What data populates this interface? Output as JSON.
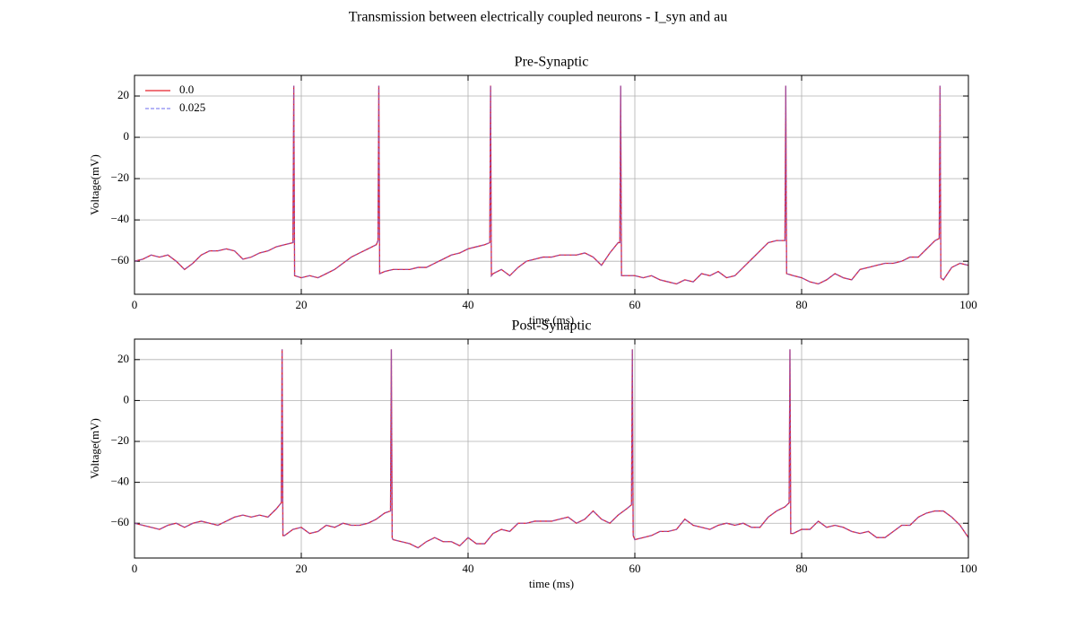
{
  "title": "Transmission between electrically coupled neurons - I_syn and au",
  "chart_data": [
    {
      "type": "line",
      "title": "Pre-Synaptic",
      "xlabel": "time (ms)",
      "ylabel": "Voltage(mV)",
      "xlim": [
        0,
        100
      ],
      "ylim": [
        -76,
        30
      ],
      "xticks": [
        0,
        20,
        40,
        60,
        80,
        100
      ],
      "yticks": [
        {
          "value": -60,
          "label": "−60"
        },
        {
          "value": -40,
          "label": "−40"
        },
        {
          "value": -20,
          "label": "−20"
        },
        0,
        20
      ],
      "grid": true,
      "legend": "upper left",
      "x": [
        0,
        1,
        2,
        3,
        4,
        5,
        6,
        7,
        8,
        9,
        10,
        11,
        12,
        13,
        14,
        15,
        16,
        17,
        18,
        19,
        19.1,
        19.2,
        20,
        21,
        22,
        23,
        24,
        25,
        26,
        27,
        28,
        29,
        29.2,
        29.3,
        29.4,
        30,
        31,
        32,
        33,
        34,
        35,
        36,
        37,
        38,
        39,
        40,
        41,
        42,
        42.6,
        42.7,
        42.8,
        43,
        44,
        45,
        46,
        47,
        48,
        49,
        50,
        51,
        52,
        53,
        54,
        55,
        56,
        57,
        58,
        58.2,
        58.3,
        58.4,
        59,
        60,
        61,
        62,
        63,
        64,
        65,
        66,
        67,
        68,
        69,
        70,
        71,
        72,
        73,
        74,
        75,
        76,
        77,
        78,
        78.1,
        78.2,
        79,
        80,
        81,
        82,
        83,
        84,
        85,
        86,
        87,
        88,
        89,
        90,
        91,
        92,
        93,
        94,
        95,
        96,
        96.5,
        96.6,
        96.7,
        97,
        98,
        99,
        100
      ],
      "series": [
        {
          "name": "0.0",
          "color": "#e8202a",
          "dash": false,
          "values": [
            -60,
            -59,
            -57,
            -58,
            -57,
            -60,
            -64,
            -61,
            -57,
            -55,
            -55,
            -54,
            -55,
            -59,
            -58,
            -56,
            -55,
            -53,
            -52,
            -51,
            25,
            -67,
            -68,
            -67,
            -68,
            -66,
            -64,
            -61,
            -58,
            -56,
            -54,
            -52,
            -50,
            25,
            -66,
            -65,
            -64,
            -64,
            -64,
            -63,
            -63,
            -61,
            -59,
            -57,
            -56,
            -54,
            -53,
            -52,
            -51,
            25,
            -67,
            -66,
            -64,
            -67,
            -63,
            -60,
            -59,
            -58,
            -58,
            -57,
            -57,
            -57,
            -56,
            -58,
            -62,
            -56,
            -51,
            -51,
            25,
            -67,
            -67,
            -67,
            -68,
            -67,
            -69,
            -70,
            -71,
            -69,
            -70,
            -66,
            -67,
            -65,
            -68,
            -67,
            -63,
            -59,
            -55,
            -51,
            -50,
            -50,
            25,
            -66,
            -67,
            -68,
            -70,
            -71,
            -69,
            -66,
            -68,
            -69,
            -64,
            -63,
            -62,
            -61,
            -61,
            -60,
            -58,
            -58,
            -54,
            -50,
            -49,
            25,
            -68,
            -69,
            -63,
            -61,
            -62
          ]
        },
        {
          "name": "0.025",
          "color": "#6b6bef",
          "dash": true,
          "values": [
            -60,
            -59,
            -57,
            -58,
            -57,
            -60,
            -64,
            -61,
            -57,
            -55,
            -55,
            -54,
            -55,
            -59,
            -58,
            -56,
            -55,
            -53,
            -52,
            -51,
            25,
            -67,
            -68,
            -67,
            -68,
            -66,
            -64,
            -61,
            -58,
            -56,
            -54,
            -52,
            -50,
            25,
            -66,
            -65,
            -64,
            -64,
            -64,
            -63,
            -63,
            -61,
            -59,
            -57,
            -56,
            -54,
            -53,
            -52,
            -51,
            25,
            -67,
            -66,
            -64,
            -67,
            -63,
            -60,
            -59,
            -58,
            -58,
            -57,
            -57,
            -57,
            -56,
            -58,
            -62,
            -56,
            -51,
            -51,
            25,
            -67,
            -67,
            -67,
            -68,
            -67,
            -69,
            -70,
            -71,
            -69,
            -70,
            -66,
            -67,
            -65,
            -68,
            -67,
            -63,
            -59,
            -55,
            -51,
            -50,
            -50,
            25,
            -66,
            -67,
            -68,
            -70,
            -71,
            -69,
            -66,
            -68,
            -69,
            -64,
            -63,
            -62,
            -61,
            -61,
            -60,
            -58,
            -58,
            -54,
            -50,
            -49,
            25,
            -68,
            -69,
            -63,
            -61,
            -62
          ]
        }
      ]
    },
    {
      "type": "line",
      "title": "Post-Synaptic",
      "xlabel": "time (ms)",
      "ylabel": "Voltage(mV)",
      "xlim": [
        0,
        100
      ],
      "ylim": [
        -77,
        30
      ],
      "xticks": [
        0,
        20,
        40,
        60,
        80,
        100
      ],
      "yticks": [
        {
          "value": -60,
          "label": "−60"
        },
        {
          "value": -40,
          "label": "−40"
        },
        {
          "value": -20,
          "label": "−20"
        },
        0,
        20
      ],
      "grid": true,
      "x": [
        0,
        1,
        2,
        3,
        4,
        5,
        6,
        7,
        8,
        9,
        10,
        11,
        12,
        13,
        14,
        15,
        16,
        17,
        17.6,
        17.7,
        17.8,
        18,
        19,
        20,
        21,
        22,
        23,
        24,
        25,
        26,
        27,
        28,
        29,
        30,
        30.7,
        30.8,
        30.9,
        31,
        32,
        33,
        34,
        35,
        36,
        37,
        38,
        39,
        40,
        41,
        42,
        43,
        44,
        45,
        46,
        47,
        48,
        49,
        50,
        51,
        52,
        53,
        54,
        55,
        56,
        57,
        58,
        59,
        59.6,
        59.7,
        59.8,
        60,
        61,
        62,
        63,
        64,
        65,
        66,
        67,
        68,
        69,
        70,
        71,
        72,
        73,
        74,
        75,
        76,
        77,
        78,
        78.5,
        78.6,
        78.7,
        79,
        80,
        81,
        82,
        83,
        84,
        85,
        86,
        87,
        88,
        89,
        90,
        91,
        92,
        93,
        94,
        95,
        96,
        97,
        98,
        99,
        100
      ],
      "series": [
        {
          "name": "0.0",
          "color": "#e8202a",
          "dash": false,
          "values": [
            -60,
            -61,
            -62,
            -63,
            -61,
            -60,
            -62,
            -60,
            -59,
            -60,
            -61,
            -59,
            -57,
            -56,
            -57,
            -56,
            -57,
            -53,
            -50,
            25,
            -66,
            -66,
            -63,
            -62,
            -65,
            -64,
            -61,
            -62,
            -60,
            -61,
            -61,
            -60,
            -58,
            -55,
            -54,
            25,
            -67,
            -68,
            -69,
            -70,
            -72,
            -69,
            -67,
            -69,
            -69,
            -71,
            -67,
            -70,
            -70,
            -65,
            -63,
            -64,
            -60,
            -60,
            -59,
            -59,
            -59,
            -58,
            -57,
            -60,
            -58,
            -54,
            -58,
            -60,
            -56,
            -53,
            -51,
            25,
            -66,
            -68,
            -67,
            -66,
            -64,
            -64,
            -63,
            -58,
            -61,
            -62,
            -63,
            -61,
            -60,
            -61,
            -60,
            -62,
            -62,
            -57,
            -54,
            -52,
            -50,
            25,
            -65,
            -65,
            -63,
            -63,
            -59,
            -62,
            -61,
            -62,
            -64,
            -65,
            -64,
            -67,
            -67,
            -64,
            -61,
            -61,
            -57,
            -55,
            -54,
            -54,
            -57,
            -61,
            -67
          ]
        },
        {
          "name": "0.025",
          "color": "#6b6bef",
          "dash": true,
          "values": [
            -60,
            -61,
            -62,
            -63,
            -61,
            -60,
            -62,
            -60,
            -59,
            -60,
            -61,
            -59,
            -57,
            -56,
            -57,
            -56,
            -57,
            -53,
            -50,
            25,
            -66,
            -66,
            -63,
            -62,
            -65,
            -64,
            -61,
            -62,
            -60,
            -61,
            -61,
            -60,
            -58,
            -55,
            -54,
            25,
            -67,
            -68,
            -69,
            -70,
            -72,
            -69,
            -67,
            -69,
            -69,
            -71,
            -67,
            -70,
            -70,
            -65,
            -63,
            -64,
            -60,
            -60,
            -59,
            -59,
            -59,
            -58,
            -57,
            -60,
            -58,
            -54,
            -58,
            -60,
            -56,
            -53,
            -51,
            25,
            -66,
            -68,
            -67,
            -66,
            -64,
            -64,
            -63,
            -58,
            -61,
            -62,
            -63,
            -61,
            -60,
            -61,
            -60,
            -62,
            -62,
            -57,
            -54,
            -52,
            -50,
            25,
            -65,
            -65,
            -63,
            -63,
            -59,
            -62,
            -61,
            -62,
            -64,
            -65,
            -64,
            -67,
            -67,
            -64,
            -61,
            -61,
            -57,
            -55,
            -54,
            -54,
            -57,
            -61,
            -67
          ]
        }
      ]
    }
  ]
}
